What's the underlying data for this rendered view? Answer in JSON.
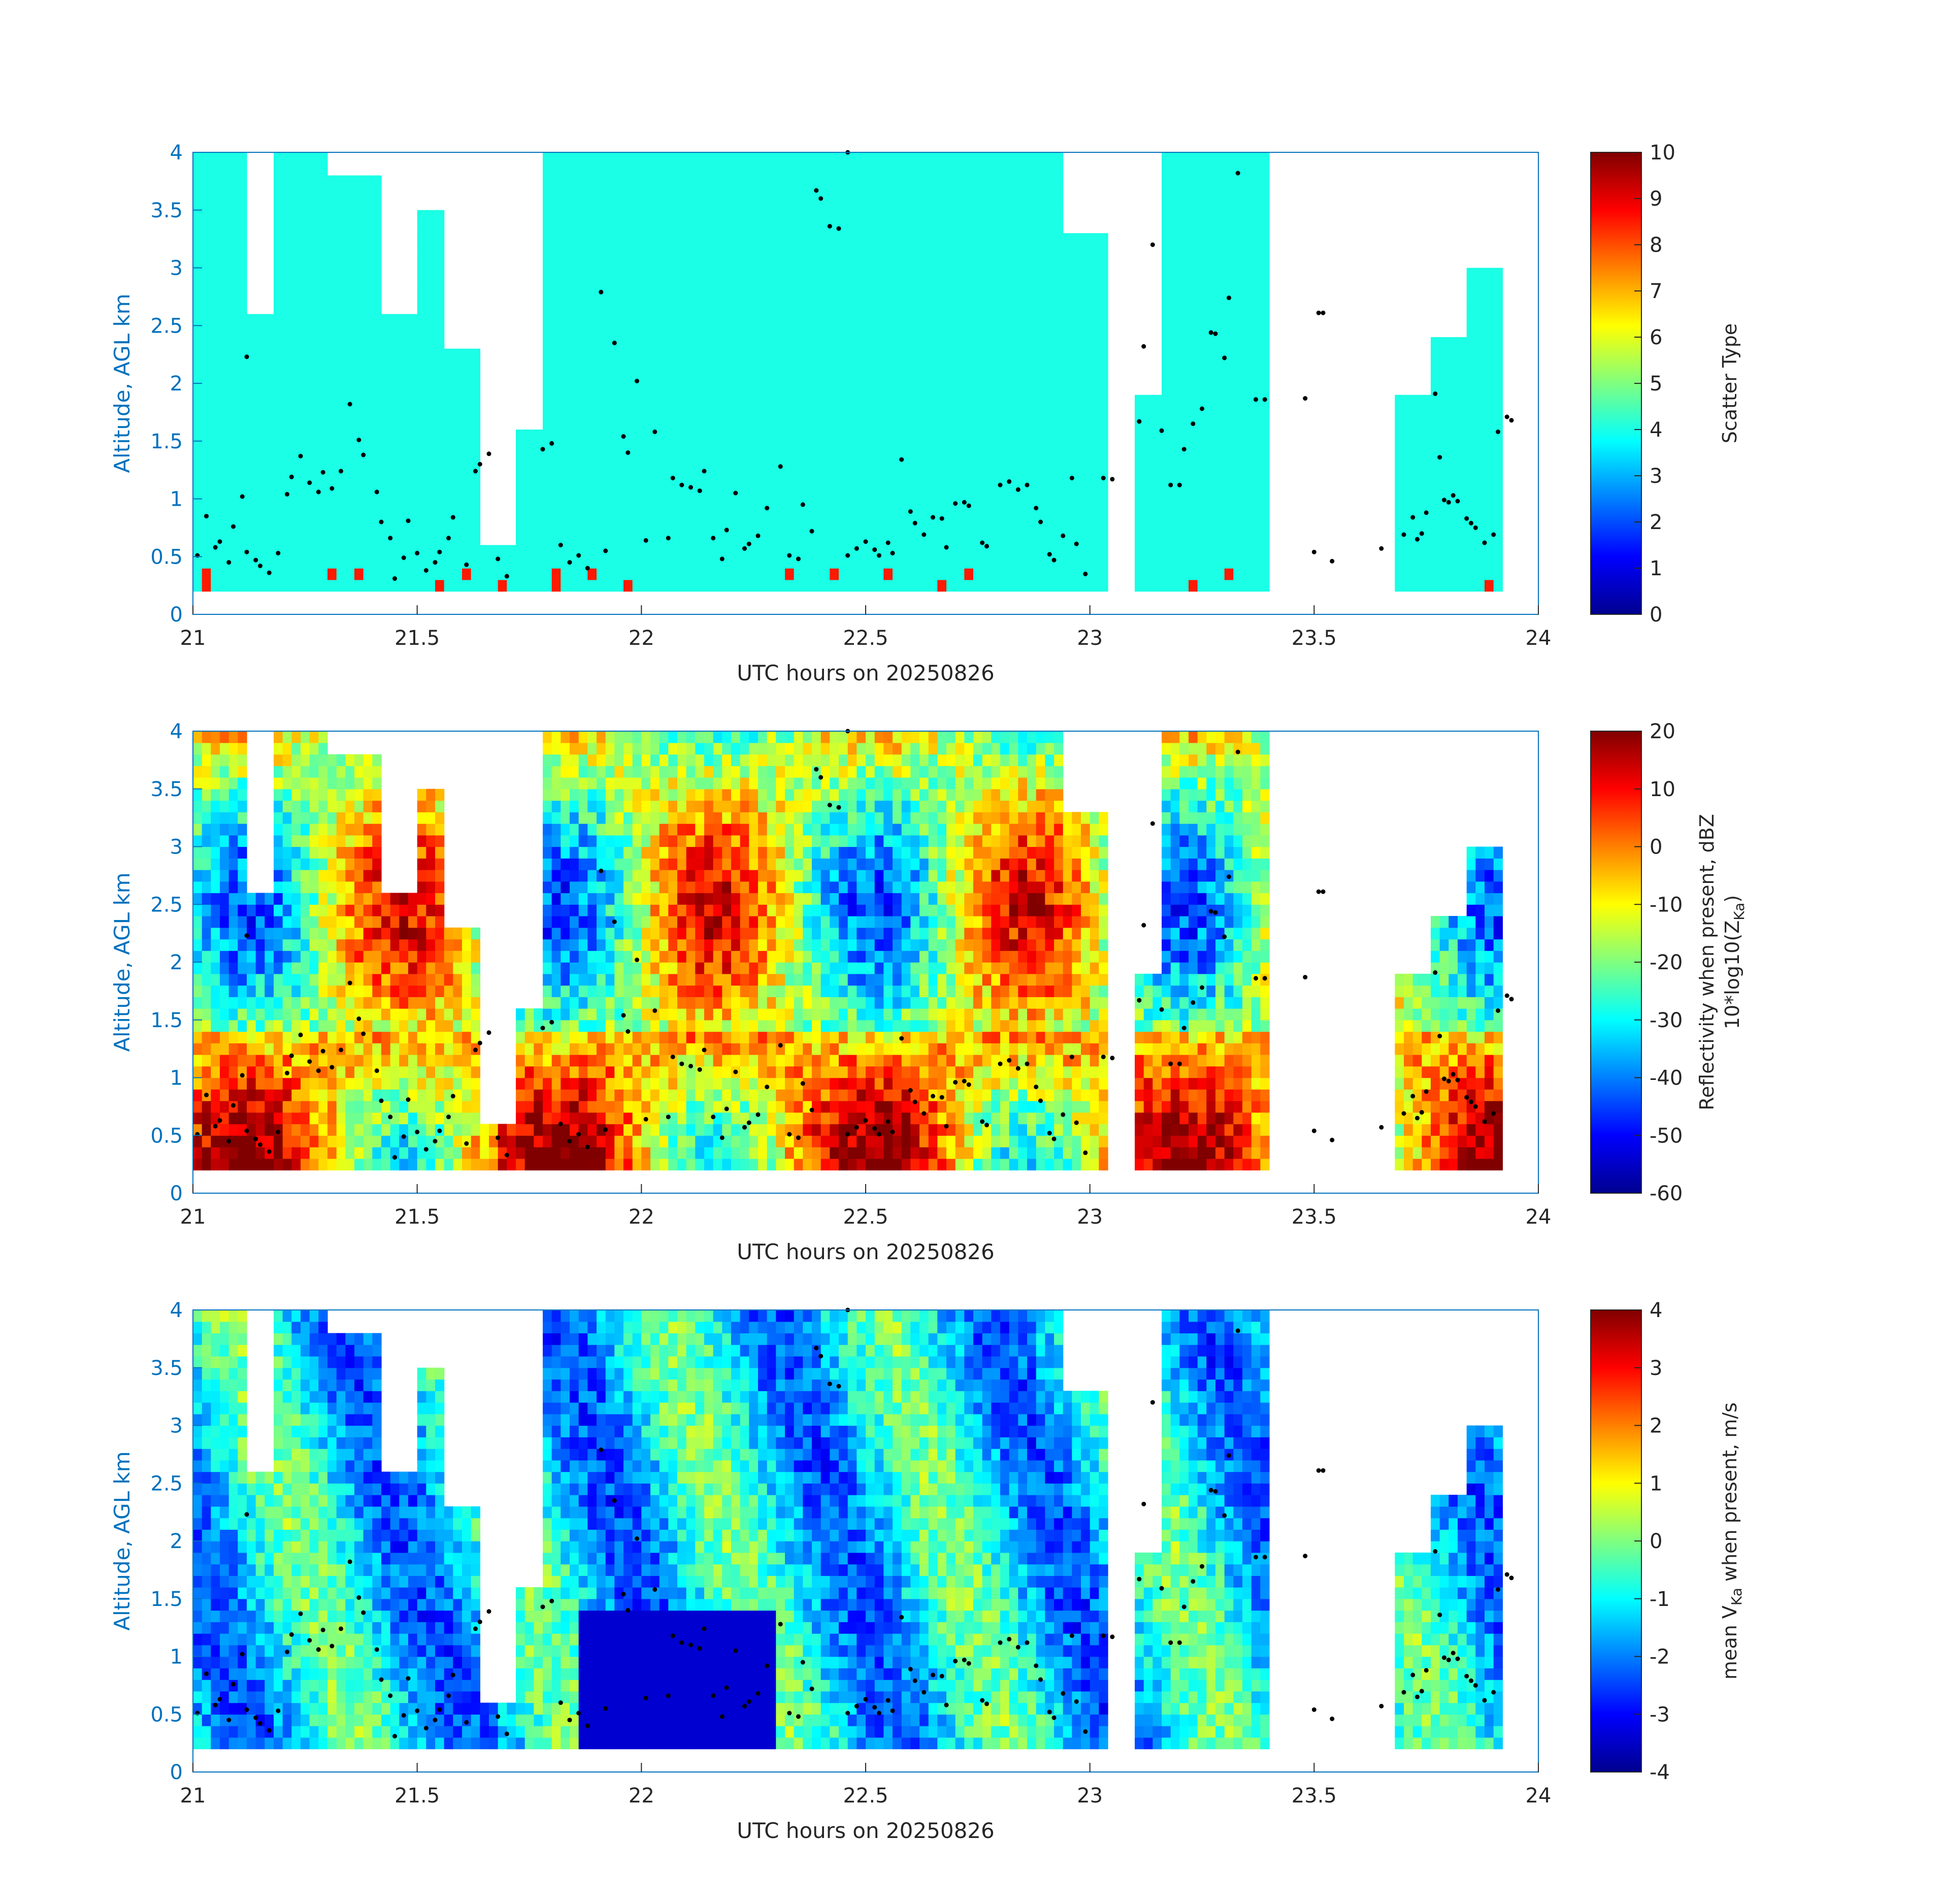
{
  "chart_data": [
    {
      "type": "heatmap",
      "title": "",
      "xlabel": "UTC hours on 20250826",
      "ylabel": "Altitude, AGL km",
      "xlim": [
        21,
        24
      ],
      "ylim": [
        0,
        4
      ],
      "x_ticks": [
        "21",
        "21.5",
        "22",
        "22.5",
        "23",
        "23.5",
        "24"
      ],
      "y_ticks": [
        "0",
        "0.5",
        "1",
        "1.5",
        "2",
        "2.5",
        "3",
        "3.5",
        "4"
      ],
      "colorbar": {
        "label_lines": [
          "Scatter Type"
        ],
        "clim": [
          0,
          10
        ],
        "ticks": [
          "0",
          "1",
          "2",
          "3",
          "4",
          "5",
          "6",
          "7",
          "8",
          "9",
          "10"
        ],
        "colormap": "jet"
      },
      "field": "scatter_type",
      "dominant_value": 4,
      "secondary_value": 8.5
    },
    {
      "type": "heatmap",
      "title": "",
      "xlabel": "UTC hours on 20250826",
      "ylabel": "Altitude, AGL km",
      "xlim": [
        21,
        24
      ],
      "ylim": [
        0,
        4
      ],
      "x_ticks": [
        "21",
        "21.5",
        "22",
        "22.5",
        "23",
        "23.5",
        "24"
      ],
      "y_ticks": [
        "0",
        "0.5",
        "1",
        "1.5",
        "2",
        "2.5",
        "3",
        "3.5",
        "4"
      ],
      "colorbar": {
        "label_lines": [
          "Reflectivity when present, dBZ",
          "10*log10(Z",
          "Ka",
          ")"
        ],
        "clim": [
          -60,
          20
        ],
        "ticks": [
          "-60",
          "-50",
          "-40",
          "-30",
          "-20",
          "-10",
          "0",
          "10",
          "20"
        ],
        "colormap": "jet"
      },
      "field": "reflectivity_dbz"
    },
    {
      "type": "heatmap",
      "title": "",
      "xlabel": "UTC hours on 20250826",
      "ylabel": "Altitude, AGL km",
      "xlim": [
        21,
        24
      ],
      "ylim": [
        0,
        4
      ],
      "x_ticks": [
        "21",
        "21.5",
        "22",
        "22.5",
        "23",
        "23.5",
        "24"
      ],
      "y_ticks": [
        "0",
        "0.5",
        "1",
        "1.5",
        "2",
        "2.5",
        "3",
        "3.5",
        "4"
      ],
      "colorbar": {
        "label_lines": [
          "mean V",
          "Ka",
          " when present, m/s"
        ],
        "clim": [
          -4,
          4
        ],
        "ticks": [
          "-4",
          "-3",
          "-2",
          "-1",
          "0",
          "1",
          "2",
          "3",
          "4"
        ],
        "colormap": "jet"
      },
      "field": "mean_doppler_velocity_ms"
    }
  ],
  "echo_segments": [
    {
      "t": [
        21.0,
        21.12
      ],
      "top": 4.0
    },
    {
      "t": [
        21.12,
        21.18
      ],
      "top": 2.6
    },
    {
      "t": [
        21.18,
        21.3
      ],
      "top": 4.0
    },
    {
      "t": [
        21.3,
        21.42
      ],
      "top": 3.8
    },
    {
      "t": [
        21.42,
        21.5
      ],
      "top": 2.6
    },
    {
      "t": [
        21.5,
        21.56
      ],
      "top": 3.5
    },
    {
      "t": [
        21.56,
        21.64
      ],
      "top": 2.3
    },
    {
      "t": [
        21.64,
        21.72
      ],
      "top": 0.6
    },
    {
      "t": [
        21.72,
        21.78
      ],
      "top": 1.6
    },
    {
      "t": [
        21.78,
        21.86
      ],
      "top": 4.0
    },
    {
      "t": [
        21.86,
        22.3
      ],
      "top": 4.0
    },
    {
      "t": [
        22.3,
        22.56
      ],
      "top": 4.0
    },
    {
      "t": [
        22.56,
        22.94
      ],
      "top": 4.0
    },
    {
      "t": [
        22.94,
        23.04
      ],
      "top": 3.3
    },
    {
      "t": [
        23.1,
        23.16
      ],
      "top": 1.9
    },
    {
      "t": [
        23.16,
        23.22
      ],
      "top": 4.0
    },
    {
      "t": [
        23.22,
        23.34
      ],
      "top": 4.0
    },
    {
      "t": [
        23.34,
        23.4
      ],
      "top": 4.0
    },
    {
      "t": [
        23.68,
        23.76
      ],
      "top": 1.9
    },
    {
      "t": [
        23.76,
        23.84
      ],
      "top": 2.4
    },
    {
      "t": [
        23.84,
        23.92
      ],
      "top": 3.0
    }
  ],
  "cloud_base_points": [
    [
      21.01,
      0.51
    ],
    [
      21.03,
      0.85
    ],
    [
      21.05,
      0.58
    ],
    [
      21.06,
      0.63
    ],
    [
      21.08,
      0.45
    ],
    [
      21.09,
      0.76
    ],
    [
      21.11,
      1.02
    ],
    [
      21.12,
      2.23
    ],
    [
      21.12,
      0.54
    ],
    [
      21.14,
      0.47
    ],
    [
      21.15,
      0.42
    ],
    [
      21.17,
      0.36
    ],
    [
      21.19,
      0.53
    ],
    [
      21.21,
      1.04
    ],
    [
      21.22,
      1.19
    ],
    [
      21.24,
      1.37
    ],
    [
      21.26,
      1.14
    ],
    [
      21.28,
      1.06
    ],
    [
      21.29,
      1.23
    ],
    [
      21.31,
      1.09
    ],
    [
      21.33,
      1.24
    ],
    [
      21.35,
      1.82
    ],
    [
      21.37,
      1.51
    ],
    [
      21.38,
      1.38
    ],
    [
      21.41,
      1.06
    ],
    [
      21.42,
      0.8
    ],
    [
      21.44,
      0.66
    ],
    [
      21.45,
      0.31
    ],
    [
      21.47,
      0.49
    ],
    [
      21.48,
      0.81
    ],
    [
      21.5,
      0.53
    ],
    [
      21.52,
      0.38
    ],
    [
      21.54,
      0.45
    ],
    [
      21.55,
      0.54
    ],
    [
      21.57,
      0.66
    ],
    [
      21.58,
      0.84
    ],
    [
      21.61,
      0.43
    ],
    [
      21.63,
      1.24
    ],
    [
      21.64,
      1.3
    ],
    [
      21.66,
      1.39
    ],
    [
      21.68,
      0.48
    ],
    [
      21.7,
      0.33
    ],
    [
      21.78,
      1.43
    ],
    [
      21.8,
      1.48
    ],
    [
      21.82,
      0.6
    ],
    [
      21.84,
      0.45
    ],
    [
      21.86,
      0.51
    ],
    [
      21.88,
      0.4
    ],
    [
      21.91,
      2.79
    ],
    [
      21.92,
      0.55
    ],
    [
      21.94,
      2.35
    ],
    [
      21.96,
      1.54
    ],
    [
      21.97,
      1.4
    ],
    [
      21.99,
      2.02
    ],
    [
      22.01,
      0.64
    ],
    [
      22.03,
      1.58
    ],
    [
      22.06,
      0.66
    ],
    [
      22.07,
      1.18
    ],
    [
      22.09,
      1.12
    ],
    [
      22.11,
      1.1
    ],
    [
      22.13,
      1.07
    ],
    [
      22.14,
      1.24
    ],
    [
      22.16,
      0.66
    ],
    [
      22.18,
      0.48
    ],
    [
      22.19,
      0.73
    ],
    [
      22.21,
      1.05
    ],
    [
      22.23,
      0.57
    ],
    [
      22.24,
      0.61
    ],
    [
      22.26,
      0.68
    ],
    [
      22.28,
      0.92
    ],
    [
      22.31,
      1.28
    ],
    [
      22.33,
      0.51
    ],
    [
      22.35,
      0.48
    ],
    [
      22.36,
      0.95
    ],
    [
      22.38,
      0.72
    ],
    [
      22.39,
      3.67
    ],
    [
      22.4,
      3.6
    ],
    [
      22.42,
      3.36
    ],
    [
      22.44,
      3.34
    ],
    [
      22.46,
      4.0
    ],
    [
      22.46,
      0.51
    ],
    [
      22.48,
      0.57
    ],
    [
      22.5,
      0.63
    ],
    [
      22.52,
      0.56
    ],
    [
      22.53,
      0.51
    ],
    [
      22.55,
      0.62
    ],
    [
      22.56,
      0.53
    ],
    [
      22.58,
      1.34
    ],
    [
      22.6,
      0.89
    ],
    [
      22.61,
      0.79
    ],
    [
      22.63,
      0.69
    ],
    [
      22.65,
      0.84
    ],
    [
      22.67,
      0.83
    ],
    [
      22.68,
      0.58
    ],
    [
      22.7,
      0.96
    ],
    [
      22.72,
      0.97
    ],
    [
      22.73,
      0.94
    ],
    [
      22.76,
      0.62
    ],
    [
      22.77,
      0.59
    ],
    [
      22.8,
      1.12
    ],
    [
      22.82,
      1.15
    ],
    [
      22.84,
      1.08
    ],
    [
      22.86,
      1.12
    ],
    [
      22.88,
      0.92
    ],
    [
      22.89,
      0.8
    ],
    [
      22.91,
      0.52
    ],
    [
      22.92,
      0.47
    ],
    [
      22.94,
      0.68
    ],
    [
      22.96,
      1.18
    ],
    [
      22.97,
      0.61
    ],
    [
      22.99,
      0.35
    ],
    [
      23.03,
      1.18
    ],
    [
      23.05,
      1.17
    ],
    [
      23.11,
      1.67
    ],
    [
      23.12,
      2.32
    ],
    [
      23.14,
      3.2
    ],
    [
      23.16,
      1.59
    ],
    [
      23.18,
      1.12
    ],
    [
      23.2,
      1.12
    ],
    [
      23.21,
      1.43
    ],
    [
      23.23,
      1.65
    ],
    [
      23.25,
      1.78
    ],
    [
      23.27,
      2.44
    ],
    [
      23.28,
      2.43
    ],
    [
      23.3,
      2.22
    ],
    [
      23.31,
      2.74
    ],
    [
      23.33,
      3.82
    ],
    [
      23.37,
      1.86
    ],
    [
      23.39,
      1.86
    ],
    [
      23.48,
      1.87
    ],
    [
      23.51,
      2.61
    ],
    [
      23.52,
      2.61
    ],
    [
      23.5,
      0.54
    ],
    [
      23.54,
      0.46
    ],
    [
      23.65,
      0.57
    ],
    [
      23.7,
      0.69
    ],
    [
      23.72,
      0.84
    ],
    [
      23.73,
      0.65
    ],
    [
      23.74,
      0.7
    ],
    [
      23.75,
      0.88
    ],
    [
      23.77,
      1.91
    ],
    [
      23.78,
      1.36
    ],
    [
      23.79,
      0.99
    ],
    [
      23.8,
      0.97
    ],
    [
      23.81,
      1.03
    ],
    [
      23.82,
      0.98
    ],
    [
      23.84,
      0.83
    ],
    [
      23.85,
      0.79
    ],
    [
      23.86,
      0.75
    ],
    [
      23.88,
      0.62
    ],
    [
      23.9,
      0.69
    ],
    [
      23.91,
      1.58
    ],
    [
      23.93,
      1.71
    ],
    [
      23.94,
      1.68
    ]
  ]
}
